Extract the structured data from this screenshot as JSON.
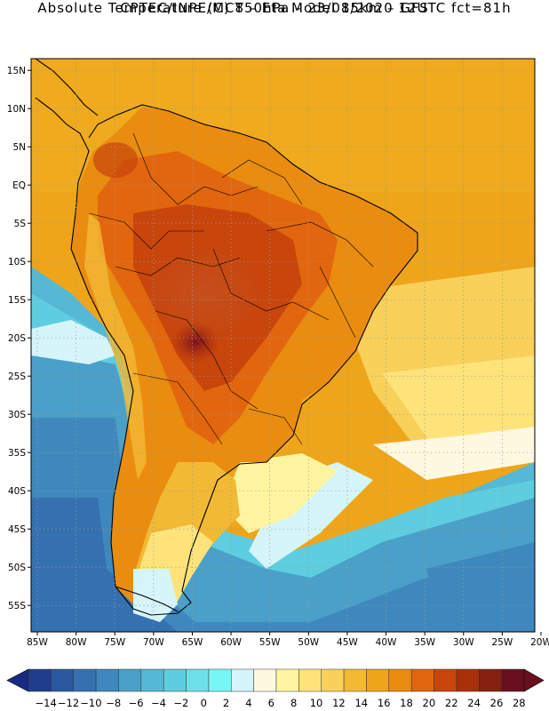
{
  "header": {
    "title_line1": "CPTEC/INPE/MCT –  Eta Model 15km – GFS",
    "title_line2": "Absolute Temperature (C) 850hPa – 23/08/2020 12UTC fct=81h"
  },
  "map": {
    "lon_labels": [
      "85W",
      "80W",
      "75W",
      "70W",
      "65W",
      "60W",
      "55W",
      "50W",
      "45W",
      "40W",
      "35W",
      "30W",
      "25W",
      "20W"
    ],
    "lat_labels": [
      "15N",
      "10N",
      "5N",
      "EQ",
      "5S",
      "10S",
      "15S",
      "20S",
      "25S",
      "30S",
      "35S",
      "40S",
      "45S",
      "50S",
      "55S"
    ],
    "lon_range": [
      -85,
      -20
    ],
    "lat_range": [
      -58,
      17
    ]
  },
  "colorbar": {
    "labels": [
      "-14",
      "-12",
      "-10",
      "-8",
      "-6",
      "-4",
      "-2",
      "0",
      "2",
      "4",
      "6",
      "8",
      "10",
      "12",
      "14",
      "16",
      "18",
      "20",
      "22",
      "24",
      "26",
      "28"
    ],
    "colors": [
      "#203c8c",
      "#2a58a0",
      "#3570b0",
      "#3e88bd",
      "#4aa0c8",
      "#55b8d5",
      "#5fcde0",
      "#6ee0ea",
      "#78f5f5",
      "#d5f5fa",
      "#fff8e0",
      "#fff5a0",
      "#fde37a",
      "#f8d05a",
      "#f2b935",
      "#eea51a",
      "#ea8c0f",
      "#e2660d",
      "#c8450c",
      "#a8300a",
      "#852010",
      "#6a0f20"
    ],
    "under_color": "#1a2a80",
    "over_color": "#6a0f20"
  }
}
